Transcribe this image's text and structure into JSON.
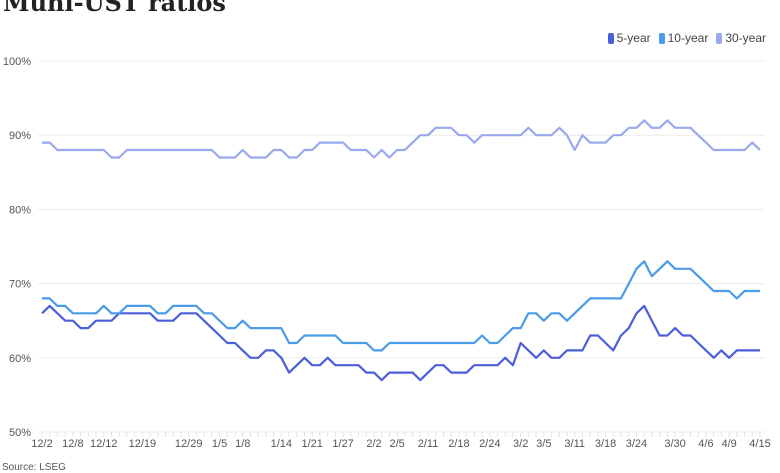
{
  "chart_data": {
    "type": "line",
    "title": "Muni-UST ratios",
    "source": "Source: LSEG",
    "ylim": [
      50,
      100
    ],
    "yticks": [
      "50%",
      "60%",
      "70%",
      "80%",
      "90%",
      "100%"
    ],
    "ytick_values": [
      50,
      60,
      70,
      80,
      90,
      100
    ],
    "grid": true,
    "legend_position": "top-right",
    "xticks": [
      {
        "label": "12/2",
        "index": 0
      },
      {
        "label": "12/8",
        "index": 4
      },
      {
        "label": "12/12",
        "index": 8
      },
      {
        "label": "12/19",
        "index": 13
      },
      {
        "label": "12/29",
        "index": 19
      },
      {
        "label": "1/5",
        "index": 23
      },
      {
        "label": "1/8",
        "index": 26
      },
      {
        "label": "1/14",
        "index": 31
      },
      {
        "label": "1/21",
        "index": 35
      },
      {
        "label": "1/27",
        "index": 39
      },
      {
        "label": "2/2",
        "index": 43
      },
      {
        "label": "2/5",
        "index": 46
      },
      {
        "label": "2/11",
        "index": 50
      },
      {
        "label": "2/18",
        "index": 54
      },
      {
        "label": "2/24",
        "index": 58
      },
      {
        "label": "3/2",
        "index": 62
      },
      {
        "label": "3/5",
        "index": 65
      },
      {
        "label": "3/11",
        "index": 69
      },
      {
        "label": "3/18",
        "index": 73
      },
      {
        "label": "3/24",
        "index": 77
      },
      {
        "label": "3/30",
        "index": 82
      },
      {
        "label": "4/6",
        "index": 86
      },
      {
        "label": "4/9",
        "index": 89
      },
      {
        "label": "4/15",
        "index": 93
      }
    ],
    "series": [
      {
        "name": "5-year",
        "color": "#4a5fd9",
        "values": [
          66,
          67,
          66,
          65,
          65,
          64,
          64,
          65,
          65,
          65,
          66,
          66,
          66,
          66,
          66,
          65,
          65,
          65,
          66,
          66,
          66,
          65,
          64,
          63,
          62,
          62,
          61,
          60,
          60,
          61,
          61,
          60,
          58,
          59,
          60,
          59,
          59,
          60,
          59,
          59,
          59,
          59,
          58,
          58,
          57,
          58,
          58,
          58,
          58,
          57,
          58,
          59,
          59,
          58,
          58,
          58,
          59,
          59,
          59,
          59,
          60,
          59,
          62,
          61,
          60,
          61,
          60,
          60,
          61,
          61,
          61,
          63,
          63,
          62,
          61,
          63,
          64,
          66,
          67,
          65,
          63,
          63,
          64,
          63,
          63,
          62,
          61,
          60,
          61,
          60,
          61,
          61,
          61,
          61
        ]
      },
      {
        "name": "10-year",
        "color": "#4a9be8",
        "values": [
          68,
          68,
          67,
          67,
          66,
          66,
          66,
          66,
          67,
          66,
          66,
          67,
          67,
          67,
          67,
          66,
          66,
          67,
          67,
          67,
          67,
          66,
          66,
          65,
          64,
          64,
          65,
          64,
          64,
          64,
          64,
          64,
          62,
          62,
          63,
          63,
          63,
          63,
          63,
          62,
          62,
          62,
          62,
          61,
          61,
          62,
          62,
          62,
          62,
          62,
          62,
          62,
          62,
          62,
          62,
          62,
          62,
          63,
          62,
          62,
          63,
          64,
          64,
          66,
          66,
          65,
          66,
          66,
          65,
          66,
          67,
          68,
          68,
          68,
          68,
          68,
          70,
          72,
          73,
          71,
          72,
          73,
          72,
          72,
          72,
          71,
          70,
          69,
          69,
          69,
          68,
          69,
          69,
          69
        ]
      },
      {
        "name": "30-year",
        "color": "#9aa8ee",
        "values": [
          89,
          89,
          88,
          88,
          88,
          88,
          88,
          88,
          88,
          87,
          87,
          88,
          88,
          88,
          88,
          88,
          88,
          88,
          88,
          88,
          88,
          88,
          88,
          87,
          87,
          87,
          88,
          87,
          87,
          87,
          88,
          88,
          87,
          87,
          88,
          88,
          89,
          89,
          89,
          89,
          88,
          88,
          88,
          87,
          88,
          87,
          88,
          88,
          89,
          90,
          90,
          91,
          91,
          91,
          90,
          90,
          89,
          90,
          90,
          90,
          90,
          90,
          90,
          91,
          90,
          90,
          90,
          91,
          90,
          88,
          90,
          89,
          89,
          89,
          90,
          90,
          91,
          91,
          92,
          91,
          91,
          92,
          91,
          91,
          91,
          90,
          89,
          88,
          88,
          88,
          88,
          88,
          89,
          88
        ]
      }
    ]
  }
}
